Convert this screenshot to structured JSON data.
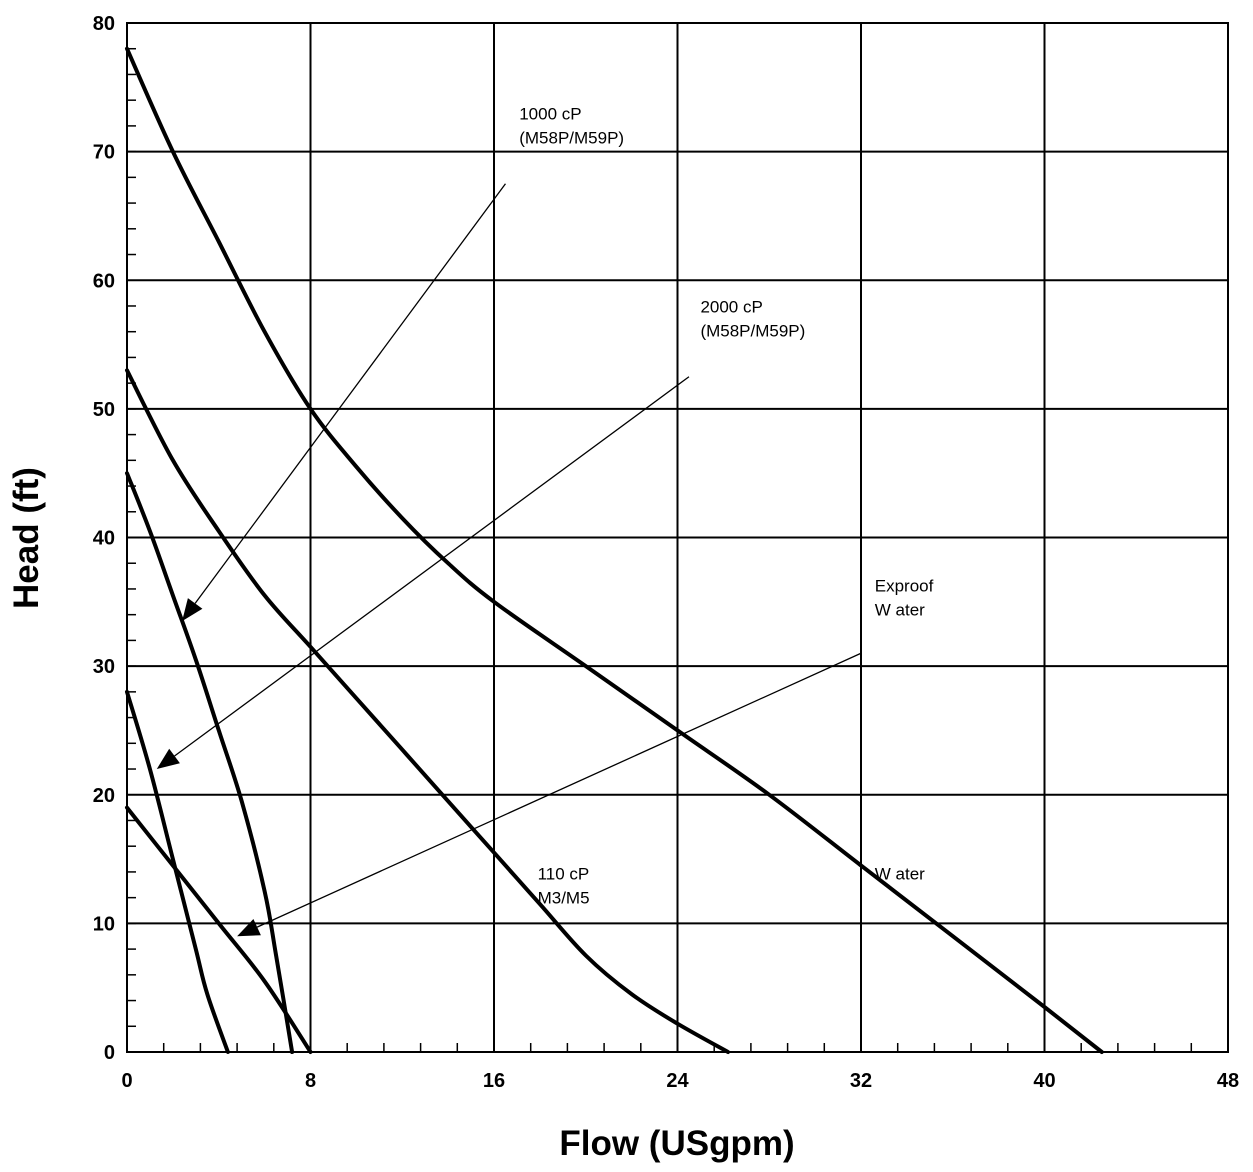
{
  "chart_data": {
    "type": "line",
    "xlabel": "Flow (USgpm)",
    "ylabel": "Head (ft)",
    "xlim": [
      0,
      48
    ],
    "ylim": [
      0,
      80
    ],
    "x_ticks": [
      0,
      8,
      16,
      24,
      32,
      40,
      48
    ],
    "y_ticks": [
      0,
      10,
      20,
      30,
      40,
      50,
      60,
      70,
      80
    ],
    "x_minor_step": 1.6,
    "y_minor_step": 2,
    "grid": true,
    "series": [
      {
        "name": "Water",
        "x": [
          0,
          2,
          4,
          6,
          8,
          10,
          12,
          14,
          16,
          20,
          24,
          28,
          32,
          36,
          40,
          42.5
        ],
        "y": [
          78,
          70,
          63,
          56,
          50,
          45.5,
          41.5,
          38,
          35,
          30,
          25,
          20,
          14.5,
          9,
          3.5,
          0
        ]
      },
      {
        "name": "110 cP M3/M5",
        "x": [
          0,
          2,
          4,
          6,
          8,
          10,
          12,
          14,
          16,
          18,
          20,
          22,
          24,
          26.2
        ],
        "y": [
          53,
          46,
          40.5,
          35.5,
          31.5,
          27.5,
          23.5,
          19.5,
          15.5,
          11.5,
          7.5,
          4.5,
          2.2,
          0
        ]
      },
      {
        "name": "1000 cP (M58P/M59P)",
        "x": [
          0,
          1,
          2,
          3,
          4,
          5,
          6,
          6.5,
          7.2
        ],
        "y": [
          45,
          40.5,
          35.5,
          30.5,
          25,
          19.5,
          12.5,
          7.5,
          0
        ]
      },
      {
        "name": "2000 cP (M58P/M59P)",
        "x": [
          0,
          1,
          2,
          3,
          3.5,
          4.4
        ],
        "y": [
          28,
          22,
          15,
          8,
          4.5,
          0
        ]
      },
      {
        "name": "Exproof Water",
        "x": [
          0,
          2,
          4,
          6,
          8
        ],
        "y": [
          19,
          14.5,
          10,
          5.5,
          0
        ]
      }
    ],
    "annotations": [
      {
        "id": "ann-1000",
        "lines": [
          "1000 cP",
          "(M58P/M59P)"
        ],
        "text_at": [
          17.1,
          72.5
        ],
        "line_from": [
          16.5,
          67.5
        ],
        "arrow_to": [
          2.4,
          33.5
        ]
      },
      {
        "id": "ann-2000",
        "lines": [
          "2000 cP",
          "(M58P/M59P)"
        ],
        "text_at": [
          25,
          57.5
        ],
        "line_from": [
          24.5,
          52.5
        ],
        "arrow_to": [
          1.3,
          22
        ]
      },
      {
        "id": "ann-exproof",
        "lines": [
          "Exproof",
          "W ater"
        ],
        "text_at": [
          32.6,
          35.8
        ],
        "line_from": [
          32,
          31
        ],
        "arrow_to": [
          4.8,
          9
        ]
      },
      {
        "id": "ann-110",
        "lines": [
          "110 cP",
          "M3/M5"
        ],
        "text_at": [
          17.9,
          13.4
        ]
      },
      {
        "id": "ann-water",
        "lines": [
          "W ater"
        ],
        "text_at": [
          32.6,
          13.4
        ]
      }
    ]
  }
}
